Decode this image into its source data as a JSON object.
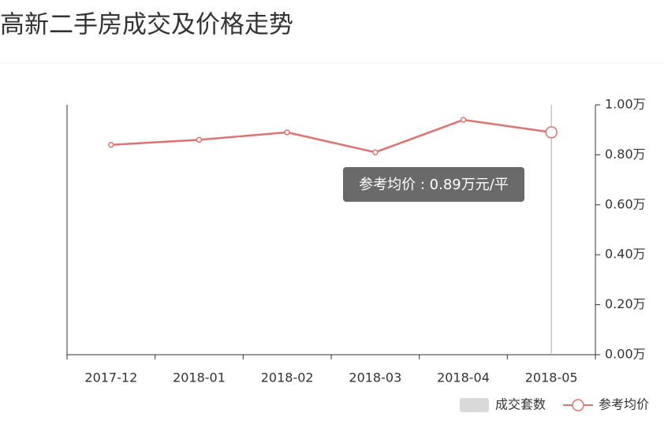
{
  "chart_data": {
    "type": "bar-line",
    "title": "高新二手房成交及价格走势",
    "categories": [
      "2017-12",
      "2018-01",
      "2018-02",
      "2018-03",
      "2018-04",
      "2018-05"
    ],
    "series": [
      {
        "name": "成交套数",
        "type": "bar",
        "color": "#d9d9d9",
        "values": [
          null,
          null,
          null,
          null,
          null,
          null
        ]
      },
      {
        "name": "参考均价",
        "type": "line",
        "color": "#dd7471",
        "values": [
          0.84,
          0.86,
          0.89,
          0.81,
          0.94,
          0.89
        ]
      }
    ],
    "ylim": [
      0,
      1
    ],
    "yticks": [
      {
        "value": 0,
        "label": "0.00万"
      },
      {
        "value": 0.2,
        "label": "0.20万"
      },
      {
        "value": 0.4,
        "label": "0.40万"
      },
      {
        "value": 0.6,
        "label": "0.60万"
      },
      {
        "value": 0.8,
        "label": "0.80万"
      },
      {
        "value": 1,
        "label": "1.00万"
      }
    ],
    "yaxis_side": "right",
    "legend": "bottom-right",
    "tooltip": "参考均价 : 0.89万元/平"
  }
}
